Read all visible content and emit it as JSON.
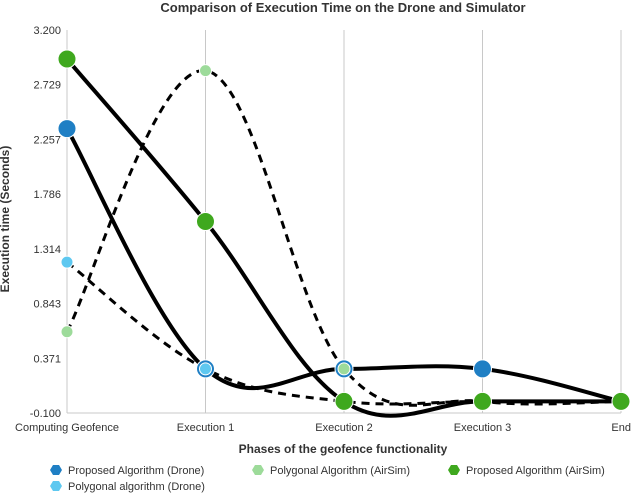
{
  "chart_data": {
    "type": "line",
    "title": "Comparison of Execution Time on the Drone and Simulator",
    "xlabel": "Phases of the geofence functionality",
    "ylabel": "Execution time (Seconds)",
    "categories": [
      "Computing Geofence",
      "Execution 1",
      "Execution 2",
      "Execution 3",
      "End"
    ],
    "y_ticks": [
      "-0.100",
      "0.371",
      "0.843",
      "1.314",
      "1.786",
      "2.257",
      "2.729",
      "3.200"
    ],
    "ylim": [
      -0.1,
      3.2
    ],
    "grid": "vertical",
    "legend_position": "bottom",
    "series": [
      {
        "name": "Proposed Algorithm (Drone)",
        "values": [
          2.35,
          0.28,
          0.28,
          0.28,
          0.0
        ],
        "color": "#1f7fc4",
        "dashed": false
      },
      {
        "name": "Polygonal algorithm (Drone)",
        "values": [
          1.2,
          0.28,
          0.0,
          0.0,
          0.0
        ],
        "color": "#5ec8f0",
        "dashed": true
      },
      {
        "name": "Polygonal Algorithm (AirSim)",
        "values": [
          0.6,
          2.85,
          0.28,
          0.0,
          0.0
        ],
        "color": "#9ddb9a",
        "dashed": true
      },
      {
        "name": "Proposed Algorithm (AirSim)",
        "values": [
          2.95,
          1.55,
          0.0,
          0.0,
          0.0
        ],
        "color": "#3fa81e",
        "dashed": false
      }
    ]
  }
}
